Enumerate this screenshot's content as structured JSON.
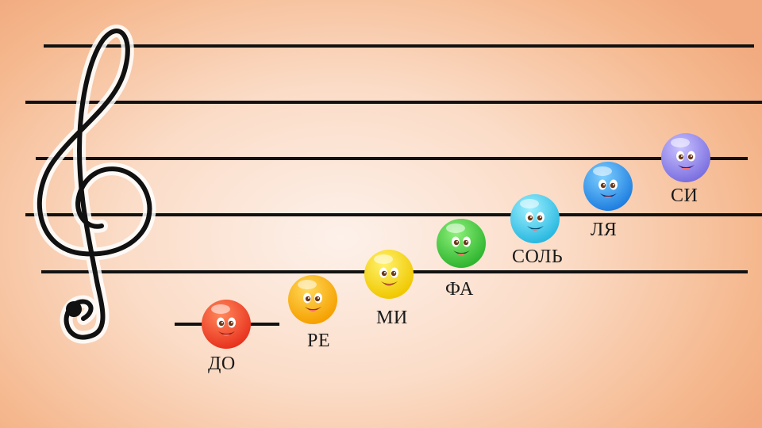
{
  "notes": [
    {
      "name": "ДО",
      "color": "#e8321e",
      "highlight": "#ff8a5c"
    },
    {
      "name": "РЕ",
      "color": "#f5a000",
      "highlight": "#ffd95a"
    },
    {
      "name": "МИ",
      "color": "#f0c800",
      "highlight": "#fff26e"
    },
    {
      "name": "ФА",
      "color": "#2fb52f",
      "highlight": "#8ef07a"
    },
    {
      "name": "СОЛЬ",
      "color": "#29b8e0",
      "highlight": "#9ef0ff"
    },
    {
      "name": "ЛЯ",
      "color": "#1f7fe0",
      "highlight": "#7fd0ff"
    },
    {
      "name": "СИ",
      "color": "#7b6fe0",
      "highlight": "#c9c2ff"
    }
  ],
  "clef_icon": "treble-clef-icon",
  "staff_color": "#111111"
}
